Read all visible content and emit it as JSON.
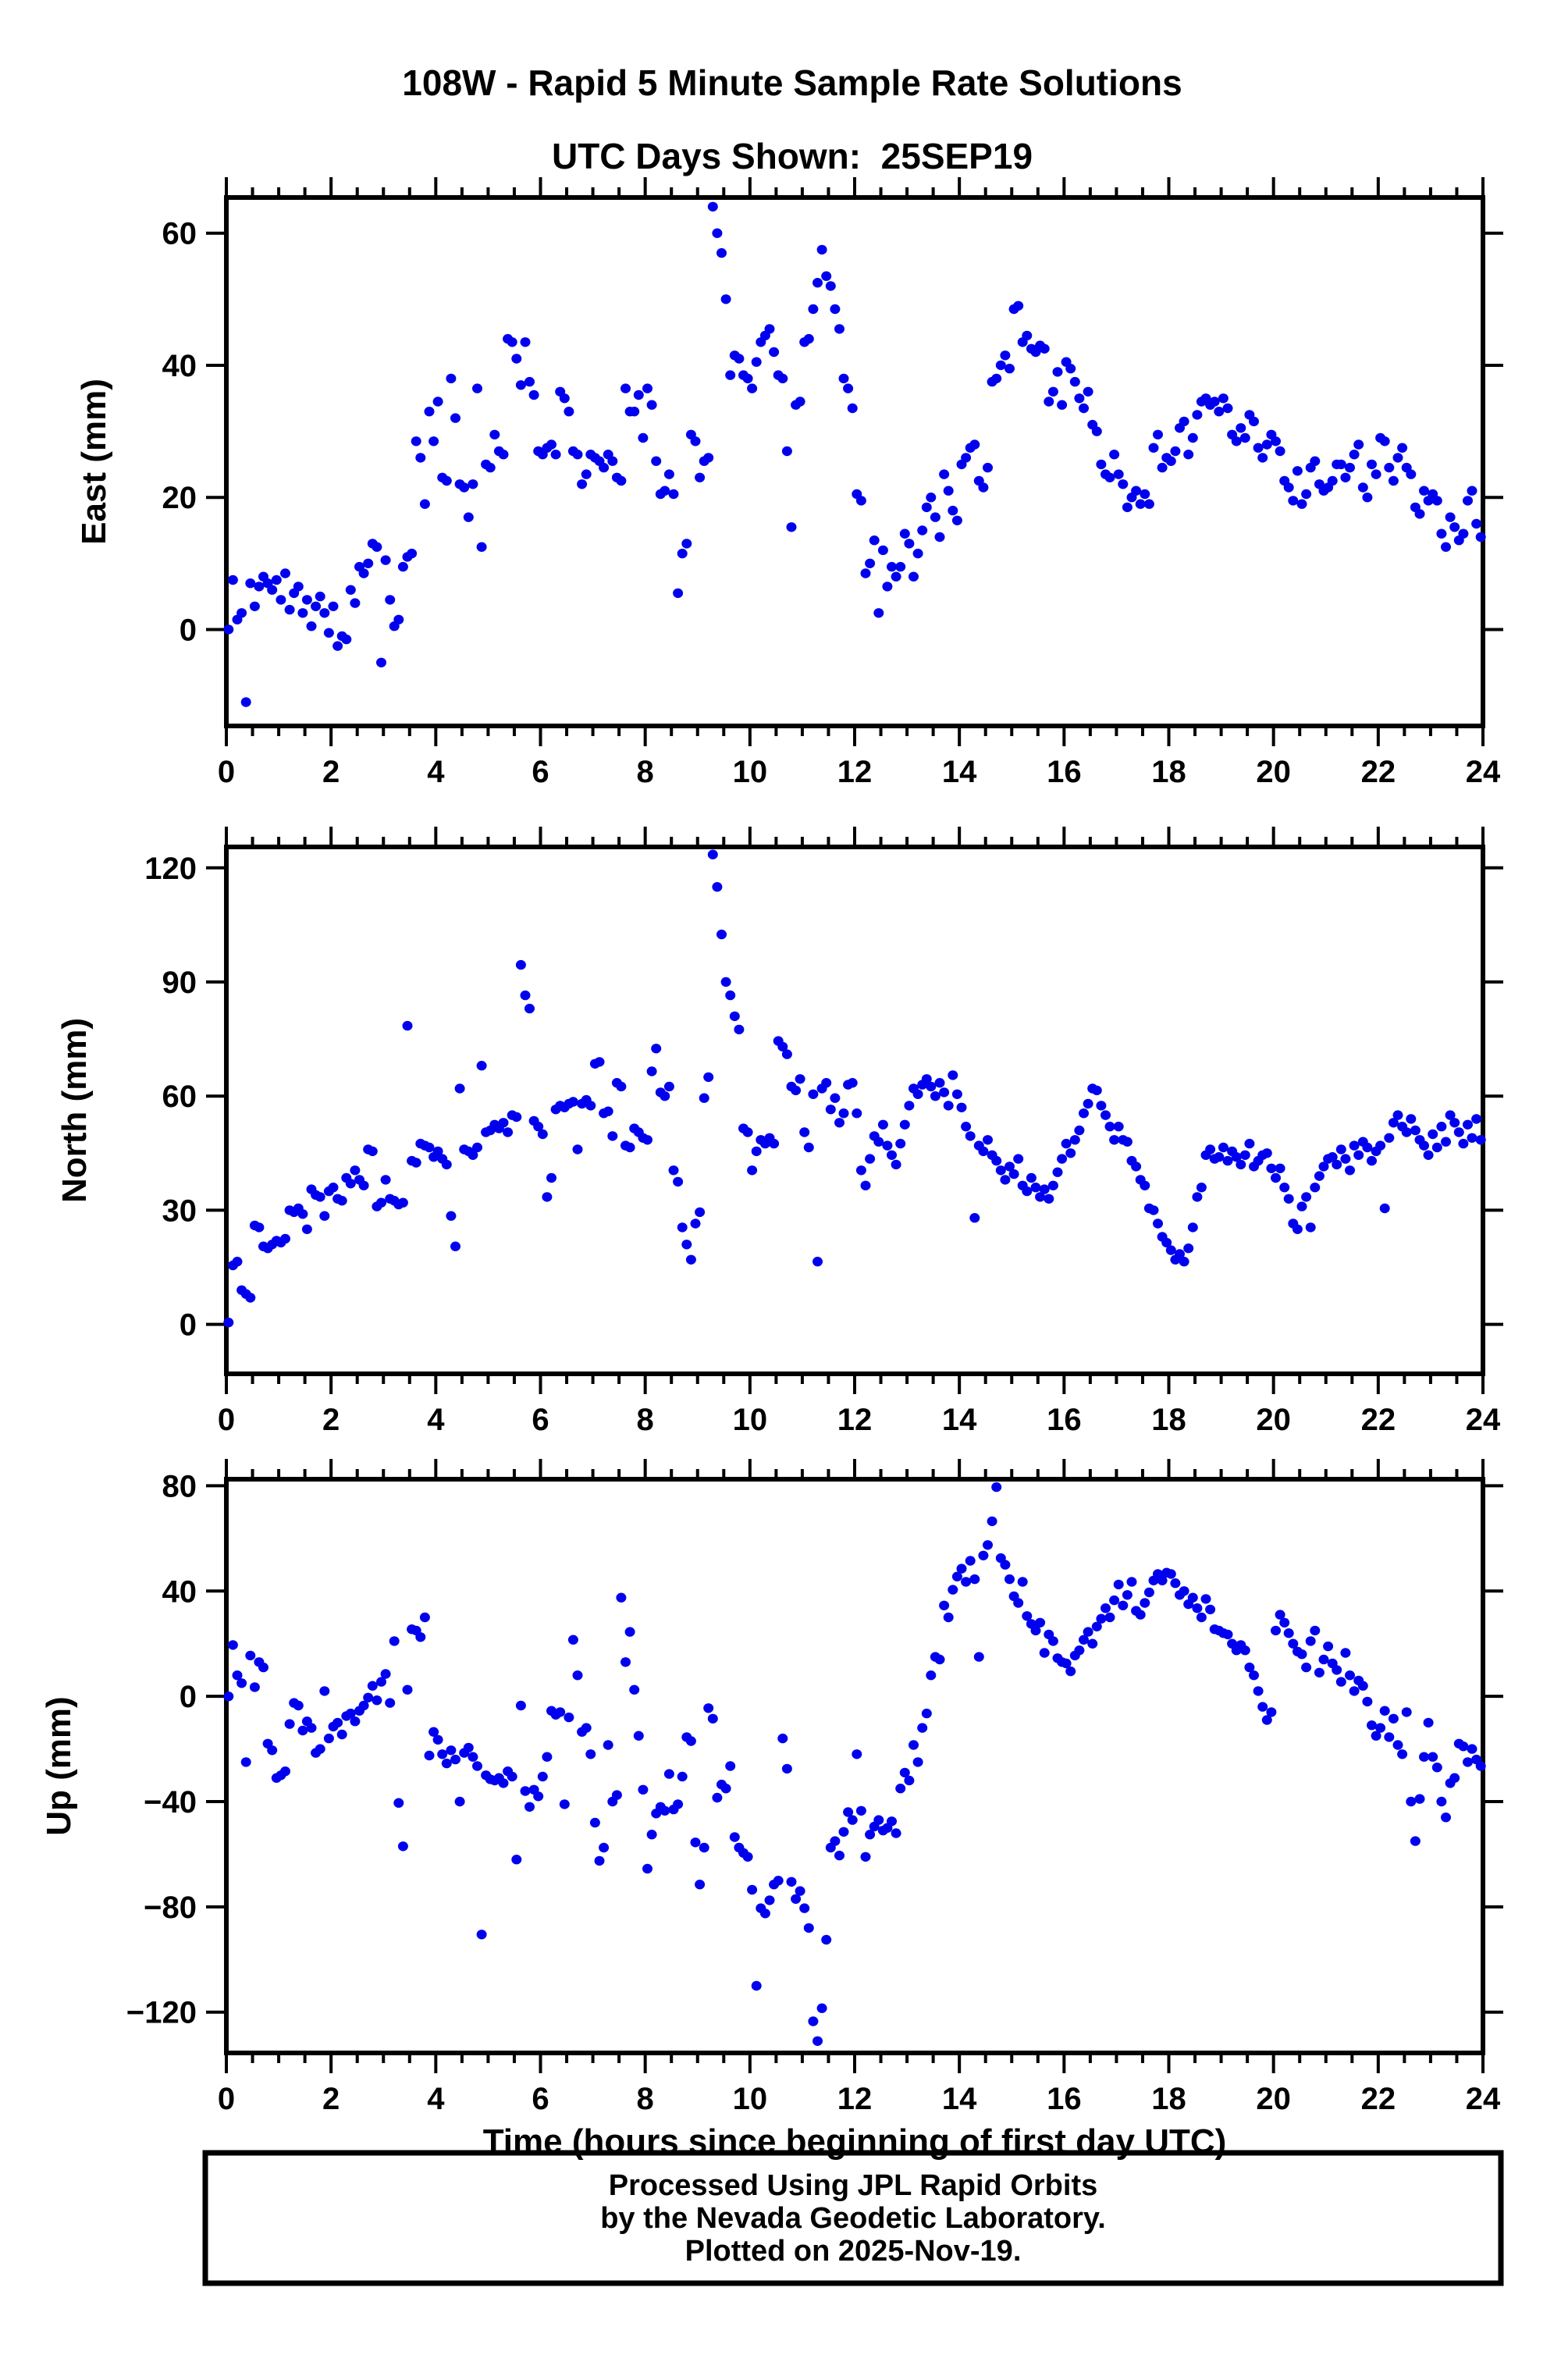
{
  "title": {
    "line1": "108W - Rapid 5 Minute Sample Rate Solutions",
    "line2": "UTC Days Shown:  25SEP19"
  },
  "xaxis": {
    "label": "Time (hours since beginning of first day UTC)",
    "range": [
      0,
      24
    ],
    "major_ticks": [
      0,
      2,
      4,
      6,
      8,
      10,
      12,
      14,
      16,
      18,
      20,
      22,
      24
    ],
    "minor_step": 0.5
  },
  "footer": {
    "line1": "Processed Using JPL Rapid Orbits",
    "line2": "by the Nevada Geodetic Laboratory.",
    "line3": "Plotted on 2025-Nov-19."
  },
  "point_color": "#0000ee",
  "frame_color": "#000000",
  "chart_data": [
    {
      "type": "scatter",
      "name": "east",
      "ylabel": "East (mm)",
      "yticks": [
        0,
        20,
        40,
        60
      ],
      "ylim": [
        -14.6,
        65.4
      ],
      "x_start": 0.042,
      "x_step_hours": 0.083333,
      "values": [
        0,
        7.5,
        1.5,
        2.5,
        -11,
        7,
        3.5,
        6.5,
        8,
        7,
        6,
        7.5,
        4.5,
        8.5,
        3,
        5.5,
        6.5,
        2.5,
        4.5,
        0.5,
        3.5,
        5,
        2.5,
        -0.5,
        3.5,
        -2.5,
        -1,
        -1.5,
        6,
        4,
        9.5,
        8.5,
        10,
        13,
        12.5,
        -5,
        10.5,
        4.5,
        0.5,
        1.5,
        9.5,
        11,
        11.5,
        28.5,
        26,
        19,
        33,
        28.5,
        34.5,
        23,
        22.5,
        38,
        32,
        22,
        21.5,
        17,
        22,
        36.5,
        12.5,
        25,
        24.5,
        29.5,
        27,
        26.5,
        44,
        43.5,
        41,
        37,
        43.5,
        37.5,
        35.5,
        27,
        26.5,
        27.5,
        28,
        26.5,
        36,
        35,
        33,
        27,
        26.5,
        22,
        23.5,
        26.5,
        26,
        25.5,
        24.5,
        26.5,
        25.5,
        23,
        22.5,
        36.5,
        33,
        33,
        35.5,
        29,
        36.5,
        34,
        25.5,
        20.5,
        21,
        23.5,
        20.5,
        5.5,
        11.5,
        13,
        29.5,
        28.5,
        23,
        25.5,
        26,
        64,
        60,
        57,
        50,
        38.5,
        41.5,
        41,
        38.5,
        38,
        36.5,
        40.5,
        43.5,
        44.5,
        45.5,
        42,
        38.5,
        38,
        27,
        15.5,
        34,
        34.5,
        43.5,
        44,
        48.5,
        52.5,
        57.5,
        53.5,
        52,
        48.5,
        45.5,
        38,
        36.5,
        33.5,
        20.5,
        19.5,
        8.5,
        10,
        13.5,
        2.5,
        12,
        6.5,
        9.5,
        8,
        9.5,
        14.5,
        13,
        8,
        11.5,
        15,
        18.5,
        20,
        17,
        14,
        23.5,
        21,
        18,
        16.5,
        25,
        26,
        27.5,
        28,
        22.5,
        21.5,
        24.5,
        37.5,
        38,
        40,
        41.5,
        39.5,
        48.5,
        49,
        43.5,
        44.5,
        42.5,
        42,
        43,
        42.5,
        34.5,
        36,
        39,
        34,
        40.5,
        39.5,
        37.5,
        35,
        33.5,
        36,
        31,
        30,
        25,
        23.5,
        23,
        26.5,
        23.5,
        22,
        18.5,
        20,
        21,
        19,
        20.5,
        19,
        27.5,
        29.5,
        24.5,
        26,
        25.5,
        27,
        30.5,
        31.5,
        26.5,
        29,
        32.5,
        34.5,
        35,
        34,
        34.5,
        33,
        35,
        33.5,
        29.5,
        28.5,
        30.5,
        29,
        32.5,
        31.5,
        27.5,
        26,
        28,
        29.5,
        28.5,
        27,
        22.5,
        21.5,
        19.5,
        24,
        19,
        20.5,
        24.5,
        25.5,
        22,
        21,
        21.5,
        22.5,
        25,
        25,
        23,
        24.5,
        26.5,
        28,
        21.5,
        20,
        25,
        23.5,
        29,
        28.5,
        24.5,
        22.5,
        26,
        27.5,
        24.5,
        23.5,
        18.5,
        17.5,
        21,
        19.5,
        20.5,
        19.5,
        14.5,
        12.5,
        17,
        15.5,
        13.5,
        14.5,
        19.5,
        21,
        16,
        14
      ]
    },
    {
      "type": "scatter",
      "name": "north",
      "ylabel": "North (mm)",
      "yticks": [
        0,
        30,
        60,
        90,
        120
      ],
      "ylim": [
        -13,
        125.5
      ],
      "x_start": 0.042,
      "x_step_hours": 0.083333,
      "values": [
        0.5,
        15.5,
        16.5,
        9,
        8,
        7,
        26,
        25.5,
        20.5,
        20,
        21,
        22,
        21.5,
        22.5,
        30,
        29.5,
        30.5,
        29,
        25,
        35.5,
        34,
        33.5,
        28.5,
        35,
        36,
        33,
        32.5,
        38.5,
        37,
        40.5,
        38,
        36.5,
        46,
        45.5,
        31,
        32,
        38,
        33,
        32.5,
        31.5,
        32,
        78.5,
        43,
        42.5,
        47.5,
        47,
        46.5,
        44,
        45.5,
        43.5,
        42,
        28.5,
        20.5,
        62,
        46,
        45.5,
        44.5,
        46.5,
        68,
        50.5,
        51,
        52.5,
        51.5,
        53,
        50.5,
        55,
        54.5,
        94.5,
        86.5,
        83,
        53.5,
        52,
        50,
        33.5,
        38.5,
        56.5,
        57.5,
        57,
        58,
        58.5,
        46,
        58,
        59,
        57.5,
        68.5,
        69,
        55.5,
        56,
        49.5,
        63.5,
        62.5,
        47,
        46.5,
        51.5,
        50.5,
        49,
        48.5,
        66.5,
        72.5,
        61,
        60,
        62.5,
        40.5,
        37.5,
        25.5,
        21,
        17,
        26.5,
        29.5,
        59.5,
        65,
        123.5,
        115,
        102.5,
        90,
        86.5,
        81,
        77.5,
        51.5,
        50.5,
        40.5,
        45.5,
        48.5,
        47.5,
        49,
        47.5,
        74.5,
        73,
        71,
        62.5,
        61.5,
        64.5,
        50.5,
        46.5,
        60.5,
        16.5,
        62,
        63.5,
        56.5,
        59.5,
        53,
        55.5,
        63,
        63.5,
        55.5,
        40.5,
        36.5,
        43.5,
        49.5,
        48,
        52.5,
        47,
        44.5,
        42,
        47.5,
        52.5,
        57.5,
        62,
        60.5,
        63,
        64.5,
        62.5,
        60,
        63.5,
        61,
        57.5,
        65.5,
        60.5,
        57,
        52,
        49.5,
        28,
        47,
        45.5,
        48.5,
        44.5,
        43,
        40.5,
        38,
        41.5,
        39.5,
        43.5,
        36.5,
        35,
        38.5,
        36,
        33.5,
        35.5,
        33,
        36.5,
        40,
        43.5,
        47.5,
        45,
        48.5,
        51,
        55.5,
        58,
        62,
        61.5,
        57.5,
        55,
        52,
        48.5,
        52,
        48.5,
        48,
        43,
        41.5,
        38,
        36.5,
        30.5,
        30,
        26.5,
        23,
        21.5,
        19.5,
        17,
        18.5,
        16.5,
        20,
        25.5,
        33.5,
        36,
        44.5,
        46,
        43.5,
        44,
        46.5,
        43,
        45.5,
        44,
        42,
        44.5,
        47.5,
        41.5,
        43,
        44.5,
        45,
        41,
        38.5,
        41,
        36,
        33,
        26.5,
        25,
        31,
        33.5,
        25.5,
        36,
        39,
        41.5,
        43.5,
        44,
        42,
        46,
        43.5,
        40.5,
        47,
        44.5,
        48,
        46.5,
        43,
        45.5,
        47,
        30.5,
        49,
        53,
        55,
        52,
        50.5,
        54,
        51,
        48.5,
        47,
        44.5,
        50,
        46.5,
        52,
        48,
        55,
        53,
        50.5,
        47.5,
        52.5,
        49,
        54,
        48.5
      ]
    },
    {
      "type": "scatter",
      "name": "up",
      "ylabel": "Up (mm)",
      "yticks": [
        -120,
        -80,
        -40,
        0,
        40,
        80
      ],
      "ylim": [
        -135.5,
        82.5
      ],
      "x_start": 0.042,
      "x_step_hours": 0.083333,
      "values": [
        0,
        19.5,
        8,
        5,
        -25,
        15.5,
        3.5,
        13,
        11,
        -18,
        -20.5,
        -31,
        -30,
        -28.5,
        -10.5,
        -2.5,
        -3.5,
        -13,
        -9.5,
        -12,
        -21.5,
        -20,
        2,
        -16,
        -11.5,
        -10,
        -14.5,
        -7.5,
        -6.5,
        -9.5,
        -5.5,
        -3.5,
        -0.5,
        4,
        -1.5,
        5.5,
        8.5,
        -2.5,
        21,
        -40.5,
        -57,
        2.5,
        25.5,
        25,
        22.5,
        30,
        -22.5,
        -13.5,
        -16.5,
        -22,
        -25.5,
        -20.5,
        -24,
        -40,
        -21.5,
        -19.5,
        -23,
        -26.5,
        -90.5,
        -30,
        -31.5,
        -32,
        -31,
        -33,
        -28.5,
        -30.5,
        -62,
        -3.5,
        -36,
        -42,
        -35.5,
        -38,
        -30.5,
        -23,
        -5.5,
        -7,
        -6,
        -41,
        -8,
        21.5,
        8,
        -13.5,
        -12,
        -22,
        -48,
        -62.5,
        -57.5,
        -18.5,
        -40,
        -37.5,
        37.5,
        13,
        24.5,
        2.5,
        -15,
        -35.5,
        -65.5,
        -52.5,
        -44.5,
        -42,
        -43.5,
        -29.5,
        -43,
        -41,
        -30.5,
        -15.5,
        -17,
        -55.5,
        -71.5,
        -57.5,
        -4.5,
        -8.5,
        -38.5,
        -33.5,
        -35,
        -26.5,
        -53.5,
        -57.5,
        -59.5,
        -61,
        -73.5,
        -110,
        -80.5,
        -82.5,
        -77.5,
        -71.5,
        -70,
        -16,
        -27.5,
        -70.5,
        -77,
        -74,
        -80.5,
        -88,
        -123.5,
        -131,
        -118.5,
        -92.5,
        -57.5,
        -55,
        -60.5,
        -51.5,
        -44,
        -47,
        -22,
        -43.5,
        -61,
        -52.5,
        -49.5,
        -47,
        -51,
        -50,
        -47.5,
        -52,
        -35,
        -29,
        -32,
        -18.5,
        -25,
        -12,
        -6.5,
        8,
        15,
        14,
        34.5,
        30,
        40.5,
        45.5,
        48.5,
        43.5,
        51.5,
        44.5,
        15,
        53.5,
        57.5,
        66.5,
        79.5,
        52.5,
        50,
        44.5,
        38,
        35.5,
        43.5,
        30.5,
        27.5,
        25,
        28,
        16.5,
        23.5,
        21,
        14.5,
        13,
        12.5,
        9.5,
        15.5,
        17.5,
        21.5,
        24.5,
        20,
        26.5,
        29.5,
        33.5,
        30,
        36.5,
        42.5,
        34.5,
        38.5,
        43.5,
        32.5,
        31,
        35.5,
        39.5,
        44,
        46.5,
        44,
        47,
        46.5,
        43,
        38.5,
        40,
        35,
        37.5,
        33.5,
        30,
        37,
        33,
        25.5,
        25,
        24,
        23.5,
        20,
        17.5,
        19.5,
        17.5,
        11,
        8,
        2,
        -4,
        -9,
        -6,
        25,
        31,
        28,
        24,
        20,
        17,
        16,
        11,
        21,
        25,
        9,
        14,
        19,
        12.5,
        10,
        5.5,
        16.5,
        8,
        2,
        6,
        4,
        -2,
        -11,
        -15,
        -12,
        -5.5,
        -15.5,
        -8.5,
        -18.5,
        -22,
        -6,
        -40,
        -55,
        -39,
        -23,
        -10,
        -23,
        -27,
        -40,
        -46,
        -33,
        -31,
        -18,
        -19,
        -25,
        -20,
        -24,
        -26.5
      ]
    }
  ]
}
